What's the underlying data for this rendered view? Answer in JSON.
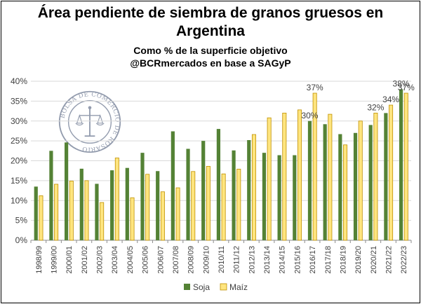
{
  "title_line1": "Área pendiente de siembra de granos gruesos en",
  "title_line2": "Argentina",
  "subtitle_line1": "Como % de la superficie objetivo",
  "subtitle_line2": "@BCRmercados en base a SAGyP",
  "watermark_text": "BOLSA DE COMERCIO DE ROSARIO",
  "colors": {
    "soja": "#548235",
    "maiz": "#FFE57F",
    "maiz_border": "#BF9000",
    "grid": "#d9d9d9"
  },
  "chart_data": {
    "type": "bar",
    "title": "Área pendiente de siembra de granos gruesos en Argentina",
    "subtitle": "Como % de la superficie objetivo",
    "categories": [
      "1998/99",
      "1999/00",
      "2000/01",
      "2001/02",
      "2002/03",
      "2003/04",
      "2004/05",
      "2005/06",
      "2006/07",
      "2007/08",
      "2008/09",
      "2009/10",
      "2010/11",
      "2011/12",
      "2012/13",
      "2013/14",
      "2014/15",
      "2015/16",
      "2016/17",
      "2017/18",
      "2018/19",
      "2019/20",
      "2020/21",
      "2021/22",
      "2022/23"
    ],
    "series": [
      {
        "name": "Soja",
        "values": [
          13.5,
          22.5,
          24.6,
          18.0,
          14.2,
          17.6,
          18.2,
          22.0,
          17.4,
          27.4,
          23.0,
          25.0,
          28.0,
          22.6,
          25.2,
          22.0,
          21.4,
          21.4,
          30.0,
          29.2,
          26.7,
          27.0,
          29.0,
          32.0,
          38.0
        ]
      },
      {
        "name": "Maíz",
        "values": [
          11.2,
          14.1,
          14.9,
          15.0,
          9.5,
          20.7,
          10.7,
          16.6,
          12.2,
          13.2,
          17.3,
          18.6,
          16.7,
          17.9,
          26.6,
          30.8,
          32.0,
          32.8,
          37.0,
          31.7,
          24.0,
          30.0,
          32.0,
          34.0,
          37.0
        ]
      }
    ],
    "ylim": [
      0,
      40
    ],
    "yticks": [
      "0%",
      "5%",
      "10%",
      "15%",
      "20%",
      "25%",
      "30%",
      "35%",
      "40%"
    ],
    "data_labels": [
      {
        "category": "2016/17",
        "series": "Maíz",
        "text": "37%"
      },
      {
        "category": "2016/17",
        "series": "Soja",
        "text": "30%"
      },
      {
        "category": "2020/21",
        "series": "Maíz",
        "text": "32%"
      },
      {
        "category": "2021/22",
        "series": "Maíz",
        "text": "34%"
      },
      {
        "category": "2022/23",
        "series": "Soja",
        "text": "38%"
      },
      {
        "category": "2022/23",
        "series": "Maíz",
        "text": "37%"
      }
    ],
    "grid": true,
    "legend": "bottom"
  }
}
